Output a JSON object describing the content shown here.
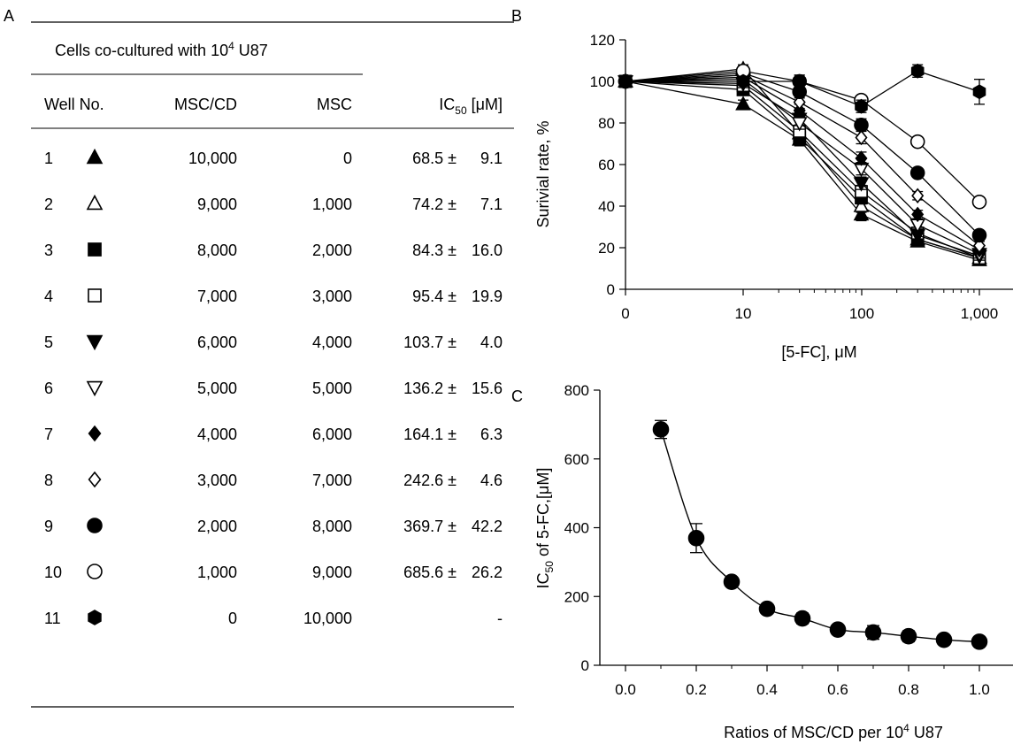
{
  "panel_labels": {
    "a": "A",
    "b": "B",
    "c": "C"
  },
  "table": {
    "group_header_pre": "Cells co-cultured with 10",
    "group_header_sup": "4",
    "group_header_post": " U87",
    "col_well": "Well No.",
    "col_msccd": "MSC/CD",
    "col_msc": "MSC",
    "col_ic50_pre": "IC",
    "col_ic50_sub": "50",
    "col_ic50_post": " [μM]",
    "rows": [
      {
        "well": "1",
        "msccd": "10,000",
        "msc": "0",
        "ic50": "68.5 ±",
        "sd": "9.1",
        "marker": "triangle-up-filled"
      },
      {
        "well": "2",
        "msccd": "9,000",
        "msc": "1,000",
        "ic50": "74.2 ±",
        "sd": "7.1",
        "marker": "triangle-up-open"
      },
      {
        "well": "3",
        "msccd": "8,000",
        "msc": "2,000",
        "ic50": "84.3 ±",
        "sd": "16.0",
        "marker": "square-filled"
      },
      {
        "well": "4",
        "msccd": "7,000",
        "msc": "3,000",
        "ic50": "95.4 ±",
        "sd": "19.9",
        "marker": "square-open"
      },
      {
        "well": "5",
        "msccd": "6,000",
        "msc": "4,000",
        "ic50": "103.7 ±",
        "sd": "4.0",
        "marker": "triangle-down-filled"
      },
      {
        "well": "6",
        "msccd": "5,000",
        "msc": "5,000",
        "ic50": "136.2 ±",
        "sd": "15.6",
        "marker": "triangle-down-open"
      },
      {
        "well": "7",
        "msccd": "4,000",
        "msc": "6,000",
        "ic50": "164.1 ±",
        "sd": "6.3",
        "marker": "diamond-filled"
      },
      {
        "well": "8",
        "msccd": "3,000",
        "msc": "7,000",
        "ic50": "242.6 ±",
        "sd": "4.6",
        "marker": "diamond-open"
      },
      {
        "well": "9",
        "msccd": "2,000",
        "msc": "8,000",
        "ic50": "369.7 ±",
        "sd": "42.2",
        "marker": "circle-filled"
      },
      {
        "well": "10",
        "msccd": "1,000",
        "msc": "9,000",
        "ic50": "685.6 ±",
        "sd": "26.2",
        "marker": "circle-open"
      },
      {
        "well": "11",
        "msccd": "0",
        "msc": "10,000",
        "ic50": "-",
        "sd": "",
        "marker": "hexagon-filled"
      }
    ]
  },
  "chart_data": [
    {
      "type": "line",
      "xscale": "log",
      "x": [
        0,
        10,
        30,
        100,
        300,
        1000
      ],
      "xticks": [
        0,
        10,
        100,
        1000
      ],
      "xtick_labels": [
        "0",
        "10",
        "100",
        "1,000"
      ],
      "xlabel": "[5-FC], μM",
      "ylabel": "Surivial rate, %",
      "ylim": [
        0,
        120
      ],
      "yticks": [
        0,
        20,
        40,
        60,
        80,
        100,
        120
      ],
      "series": [
        {
          "marker": "triangle-up-filled",
          "values": [
            100,
            89,
            72,
            36,
            23,
            14
          ],
          "err": [
            0,
            2,
            3,
            3,
            2,
            2
          ]
        },
        {
          "marker": "triangle-up-open",
          "values": [
            100,
            106,
            75,
            40,
            24,
            15
          ],
          "err": [
            0,
            2,
            3,
            3,
            2,
            2
          ]
        },
        {
          "marker": "square-filled",
          "values": [
            100,
            96,
            73,
            44,
            24,
            15
          ],
          "err": [
            0,
            2,
            3,
            3,
            2,
            2
          ]
        },
        {
          "marker": "square-open",
          "values": [
            100,
            98,
            76,
            47,
            27,
            15
          ],
          "err": [
            0,
            2,
            3,
            3,
            2,
            2
          ]
        },
        {
          "marker": "triangle-down-filled",
          "values": [
            100,
            99,
            82,
            51,
            26,
            16
          ],
          "err": [
            0,
            2,
            3,
            3,
            2,
            2
          ]
        },
        {
          "marker": "triangle-down-open",
          "values": [
            100,
            101,
            80,
            58,
            31,
            17
          ],
          "err": [
            0,
            2,
            3,
            3,
            2,
            2
          ]
        },
        {
          "marker": "diamond-filled",
          "values": [
            100,
            102,
            86,
            63,
            36,
            19
          ],
          "err": [
            0,
            2,
            3,
            3,
            2,
            2
          ]
        },
        {
          "marker": "diamond-open",
          "values": [
            100,
            103,
            90,
            73,
            45,
            21
          ],
          "err": [
            0,
            2,
            3,
            3,
            2,
            2
          ]
        },
        {
          "marker": "circle-filled",
          "values": [
            100,
            104,
            95,
            79,
            56,
            26
          ],
          "err": [
            0,
            2,
            3,
            3,
            2,
            2
          ]
        },
        {
          "marker": "circle-open",
          "values": [
            100,
            105,
            100,
            91,
            71,
            42
          ],
          "err": [
            0,
            2,
            3,
            2,
            2,
            2
          ]
        },
        {
          "marker": "hexagon-filled",
          "values": [
            100,
            100,
            100,
            88,
            105,
            95
          ],
          "err": [
            0,
            1,
            3,
            3,
            3,
            6
          ]
        }
      ]
    },
    {
      "type": "line",
      "x": [
        0.1,
        0.2,
        0.3,
        0.4,
        0.5,
        0.6,
        0.7,
        0.8,
        0.9,
        1.0
      ],
      "values": [
        685.6,
        369.7,
        242.6,
        164.1,
        136.2,
        103.7,
        95.4,
        84.3,
        74.2,
        68.5
      ],
      "err": [
        26.2,
        42.2,
        4.6,
        6.3,
        15.6,
        4.0,
        19.9,
        16.0,
        7.1,
        9.1
      ],
      "marker": "circle-filled",
      "xlim": [
        0.0,
        1.1
      ],
      "xticks": [
        0.0,
        0.2,
        0.4,
        0.6,
        0.8,
        1.0
      ],
      "xtick_labels": [
        "0.0",
        "0.2",
        "0.4",
        "0.6",
        "0.8",
        "1.0"
      ],
      "ylim": [
        0,
        800
      ],
      "yticks": [
        0,
        200,
        400,
        600,
        800
      ],
      "xlabel_pre": "Ratios of MSC/CD per 10",
      "xlabel_sup": "4",
      "xlabel_post": " U87",
      "ylabel_pre": "IC",
      "ylabel_sub": "50",
      "ylabel_post": " of 5-FC,[μM]"
    }
  ]
}
